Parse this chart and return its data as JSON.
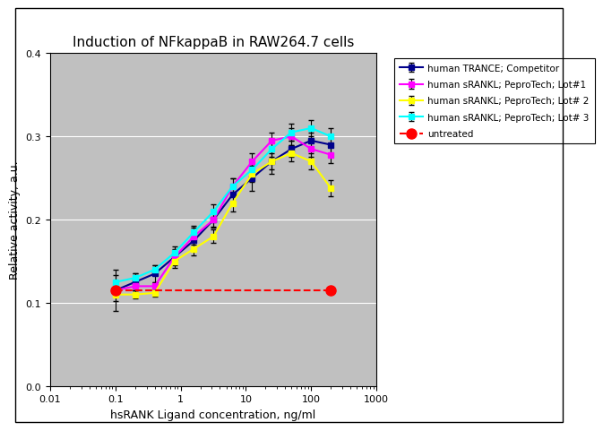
{
  "title": "Induction of NFkappaB in RAW264.7 cells",
  "xlabel": "hsRANK Ligand concentration, ng/ml",
  "ylabel": "Relative activity, a.u.",
  "xlim": [
    0.01,
    1000
  ],
  "ylim": [
    0,
    0.4
  ],
  "yticks": [
    0,
    0.1,
    0.2,
    0.3,
    0.4
  ],
  "background_color": "#c0c0c0",
  "fig_background": "#ffffff",
  "series": [
    {
      "label": "human TRANCE; Competitor",
      "color": "#00008B",
      "marker": "s",
      "linestyle": "-",
      "linewidth": 1.5,
      "markersize": 4,
      "x": [
        0.1,
        0.2,
        0.4,
        0.8,
        1.6,
        3.2,
        6.25,
        12.5,
        25,
        50,
        100,
        200
      ],
      "y": [
        0.115,
        0.125,
        0.135,
        0.155,
        0.175,
        0.2,
        0.23,
        0.25,
        0.27,
        0.285,
        0.295,
        0.29
      ],
      "yerr": [
        0.025,
        0.01,
        0.01,
        0.01,
        0.01,
        0.01,
        0.01,
        0.015,
        0.015,
        0.01,
        0.01,
        0.012
      ]
    },
    {
      "label": "human sRANKL; PeproTech; Lot#1",
      "color": "#FF00FF",
      "marker": "s",
      "linestyle": "-",
      "linewidth": 1.5,
      "markersize": 4,
      "x": [
        0.1,
        0.2,
        0.4,
        0.8,
        1.6,
        3.2,
        6.25,
        12.5,
        25,
        50,
        100,
        200
      ],
      "y": [
        0.115,
        0.12,
        0.12,
        0.155,
        0.18,
        0.2,
        0.24,
        0.27,
        0.295,
        0.3,
        0.285,
        0.278
      ],
      "yerr": [
        0.008,
        0.005,
        0.005,
        0.008,
        0.01,
        0.008,
        0.01,
        0.01,
        0.01,
        0.01,
        0.01,
        0.01
      ]
    },
    {
      "label": "human sRANKL; PeproTech; Lot# 2",
      "color": "#FFFF00",
      "marker": "s",
      "linestyle": "-",
      "linewidth": 1.5,
      "markersize": 4,
      "x": [
        0.1,
        0.2,
        0.4,
        0.8,
        1.6,
        3.2,
        6.25,
        12.5,
        25,
        50,
        100,
        200
      ],
      "y": [
        0.11,
        0.11,
        0.112,
        0.15,
        0.165,
        0.18,
        0.22,
        0.255,
        0.27,
        0.28,
        0.27,
        0.238
      ],
      "yerr": [
        0.008,
        0.005,
        0.005,
        0.008,
        0.008,
        0.008,
        0.01,
        0.01,
        0.01,
        0.01,
        0.01,
        0.01
      ]
    },
    {
      "label": "human sRANKL; PeproTech; Lot# 3",
      "color": "#00FFFF",
      "marker": "s",
      "linestyle": "-",
      "linewidth": 1.5,
      "markersize": 4,
      "x": [
        0.1,
        0.2,
        0.4,
        0.8,
        1.6,
        3.2,
        6.25,
        12.5,
        25,
        50,
        100,
        200
      ],
      "y": [
        0.125,
        0.13,
        0.14,
        0.16,
        0.185,
        0.21,
        0.24,
        0.26,
        0.285,
        0.305,
        0.31,
        0.3
      ],
      "yerr": [
        0.008,
        0.005,
        0.005,
        0.008,
        0.008,
        0.008,
        0.01,
        0.01,
        0.01,
        0.01,
        0.01,
        0.01
      ]
    },
    {
      "label": "untreated",
      "color": "#FF0000",
      "marker": "o",
      "linestyle": "--",
      "linewidth": 1.5,
      "markersize": 8,
      "x": [
        0.1,
        200
      ],
      "y": [
        0.115,
        0.115
      ],
      "yerr": [
        0.0,
        0.0
      ]
    }
  ],
  "title_fontsize": 11,
  "axis_fontsize": 9,
  "tick_fontsize": 8,
  "legend_fontsize": 7.5
}
